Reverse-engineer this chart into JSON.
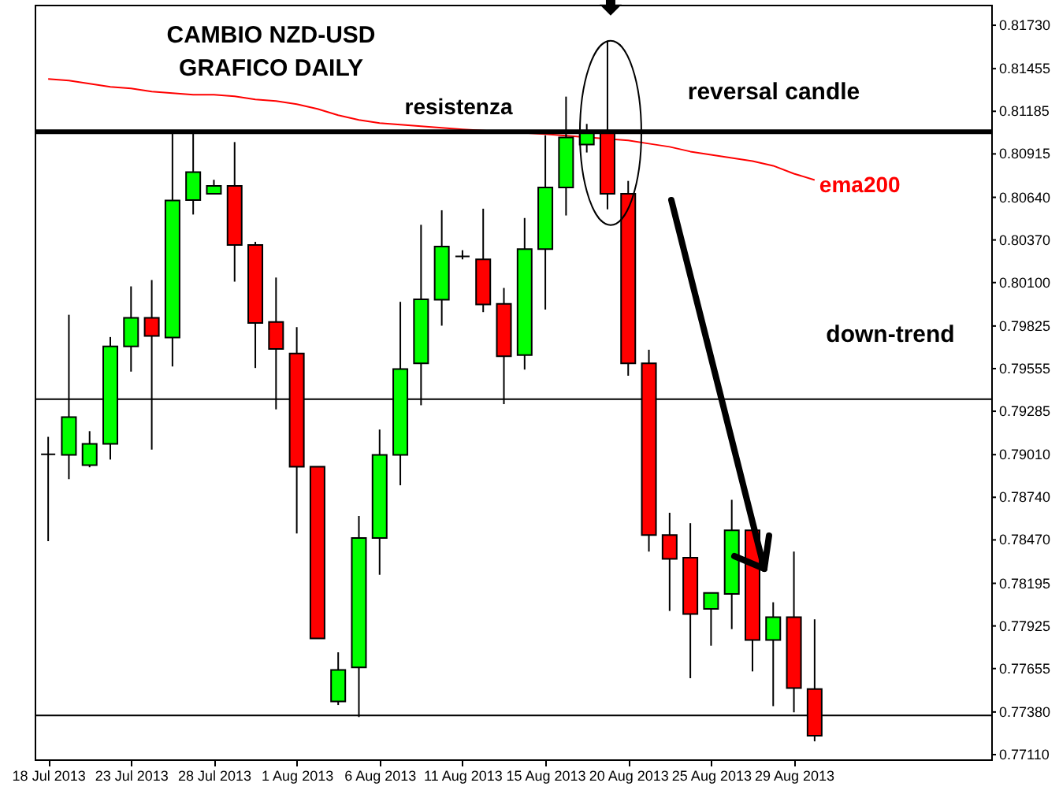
{
  "chart_data": {
    "type": "candlestick",
    "title": "CAMBIO NZD-USD\nGRAFICO DAILY",
    "categories": [
      "18 Jul 2013",
      null,
      null,
      null,
      "23 Jul 2013",
      null,
      null,
      null,
      "28 Jul 2013",
      null,
      null,
      null,
      "1 Aug 2013",
      null,
      null,
      null,
      "6 Aug 2013",
      null,
      null,
      null,
      "11 Aug 2013",
      null,
      null,
      null,
      "15 Aug 2013",
      null,
      null,
      null,
      "20 Aug 2013",
      null,
      null,
      null,
      "25 Aug 2013",
      null,
      null,
      null,
      "29 Aug 2013",
      null
    ],
    "ohlc": [
      [
        0.79012,
        0.79123,
        0.78462,
        0.79012
      ],
      [
        0.79009,
        0.79896,
        0.78855,
        0.79248
      ],
      [
        0.78943,
        0.79159,
        0.7893,
        0.79078
      ],
      [
        0.79078,
        0.79755,
        0.78979,
        0.79696
      ],
      [
        0.79696,
        0.80076,
        0.79536,
        0.79877
      ],
      [
        0.79877,
        0.80116,
        0.79042,
        0.79762
      ],
      [
        0.79752,
        0.81055,
        0.79569,
        0.8062
      ],
      [
        0.80623,
        0.81055,
        0.80531,
        0.808
      ],
      [
        0.80662,
        0.80751,
        0.80662,
        0.80712
      ],
      [
        0.80712,
        0.8099,
        0.80106,
        0.80338
      ],
      [
        0.80338,
        0.80358,
        0.79559,
        0.79844
      ],
      [
        0.7985,
        0.80132,
        0.79297,
        0.7968
      ],
      [
        0.79651,
        0.79818,
        0.78511,
        0.78933
      ],
      [
        0.78933,
        0.78933,
        0.77846,
        0.77846
      ],
      [
        0.77447,
        0.77758,
        0.77424,
        0.77646
      ],
      [
        0.77663,
        0.78622,
        0.77348,
        0.78482
      ],
      [
        0.78482,
        0.79169,
        0.78249,
        0.79009
      ],
      [
        0.79009,
        0.79978,
        0.78816,
        0.79552
      ],
      [
        0.79588,
        0.80466,
        0.79323,
        0.79994
      ],
      [
        0.79991,
        0.80558,
        0.79827,
        0.80328
      ],
      [
        0.80266,
        0.80305,
        0.80247,
        0.80266
      ],
      [
        0.80247,
        0.80568,
        0.79913,
        0.79962
      ],
      [
        0.79965,
        0.80066,
        0.7933,
        0.79634
      ],
      [
        0.79641,
        0.80509,
        0.79549,
        0.80312
      ],
      [
        0.80312,
        0.81033,
        0.79929,
        0.80702
      ],
      [
        0.80702,
        0.81278,
        0.80525,
        0.81019
      ],
      [
        0.80974,
        0.81105,
        0.80924,
        0.81046
      ],
      [
        0.81046,
        0.81632,
        0.80564,
        0.80662
      ],
      [
        0.80662,
        0.80744,
        0.7951,
        0.79588
      ],
      [
        0.79588,
        0.79674,
        0.78396,
        0.78501
      ],
      [
        0.78501,
        0.78642,
        0.7802,
        0.7835
      ],
      [
        0.78357,
        0.78576,
        0.77594,
        0.78
      ],
      [
        0.78033,
        0.78134,
        0.778,
        0.78134
      ],
      [
        0.78128,
        0.78724,
        0.77905,
        0.78531
      ],
      [
        0.78531,
        0.78567,
        0.77637,
        0.77836
      ],
      [
        0.77836,
        0.78075,
        0.77417,
        0.7798
      ],
      [
        0.7798,
        0.78396,
        0.77378,
        0.77532
      ],
      [
        0.77525,
        0.77967,
        0.77194,
        0.7723
      ]
    ],
    "colors": [
      "#000000",
      "#00ff00",
      "#00ff00",
      "#00ff00",
      "#00ff00",
      "#ff0000",
      "#00ff00",
      "#00ff00",
      "#00ff00",
      "#ff0000",
      "#ff0000",
      "#ff0000",
      "#ff0000",
      "#ff0000",
      "#00ff00",
      "#00ff00",
      "#00ff00",
      "#00ff00",
      "#00ff00",
      "#00ff00",
      "#000000",
      "#ff0000",
      "#ff0000",
      "#00ff00",
      "#00ff00",
      "#00ff00",
      "#00ff00",
      "#ff0000",
      "#ff0000",
      "#ff0000",
      "#ff0000",
      "#ff0000",
      "#00ff00",
      "#00ff00",
      "#ff0000",
      "#00ff00",
      "#ff0000",
      "#ff0000"
    ],
    "series": [
      {
        "name": "ema200",
        "type": "line",
        "color": "#ff0000",
        "values": [
          0.8139,
          0.8138,
          0.8136,
          0.8134,
          0.8133,
          0.8131,
          0.813,
          0.8129,
          0.8129,
          0.8128,
          0.8126,
          0.8125,
          0.8123,
          0.812,
          0.8116,
          0.8113,
          0.8111,
          0.811,
          0.8109,
          0.8108,
          0.8107,
          null,
          null,
          null,
          0.8104,
          0.8103,
          null,
          0.8101,
          0.81,
          0.8098,
          0.8096,
          0.8093,
          0.8091,
          0.8089,
          0.8087,
          0.8084,
          0.8079,
          0.8075
        ]
      }
    ],
    "ylim": [
      0.7708,
      0.8186
    ],
    "yticks": [
      {
        "value": 0.8173,
        "label": "0.81730"
      },
      {
        "value": 0.81455,
        "label": "0.81455"
      },
      {
        "value": 0.81185,
        "label": "0.81185"
      },
      {
        "value": 0.80915,
        "label": "0.80915"
      },
      {
        "value": 0.8064,
        "label": "0.80640"
      },
      {
        "value": 0.8037,
        "label": "0.80370"
      },
      {
        "value": 0.801,
        "label": "0.80100"
      },
      {
        "value": 0.79825,
        "label": "0.79825"
      },
      {
        "value": 0.79555,
        "label": "0.79555"
      },
      {
        "value": 0.79285,
        "label": "0.79285"
      },
      {
        "value": 0.7901,
        "label": "0.79010"
      },
      {
        "value": 0.7874,
        "label": "0.78740"
      },
      {
        "value": 0.7847,
        "label": "0.78470"
      },
      {
        "value": 0.78195,
        "label": "0.78195"
      },
      {
        "value": 0.77925,
        "label": "0.77925"
      },
      {
        "value": 0.77655,
        "label": "0.77655"
      },
      {
        "value": 0.7738,
        "label": "0.77380"
      },
      {
        "value": 0.7711,
        "label": "0.77110"
      }
    ],
    "ref_lines": [
      {
        "axis": "y",
        "value": 0.81055,
        "label": "resistenza",
        "color": "#000000"
      },
      {
        "axis": "y",
        "value": 0.79362,
        "color": "#000000"
      },
      {
        "axis": "y",
        "value": 0.77358,
        "color": "#000000"
      }
    ],
    "annotations": [
      "reversal candle",
      "down-trend"
    ]
  }
}
